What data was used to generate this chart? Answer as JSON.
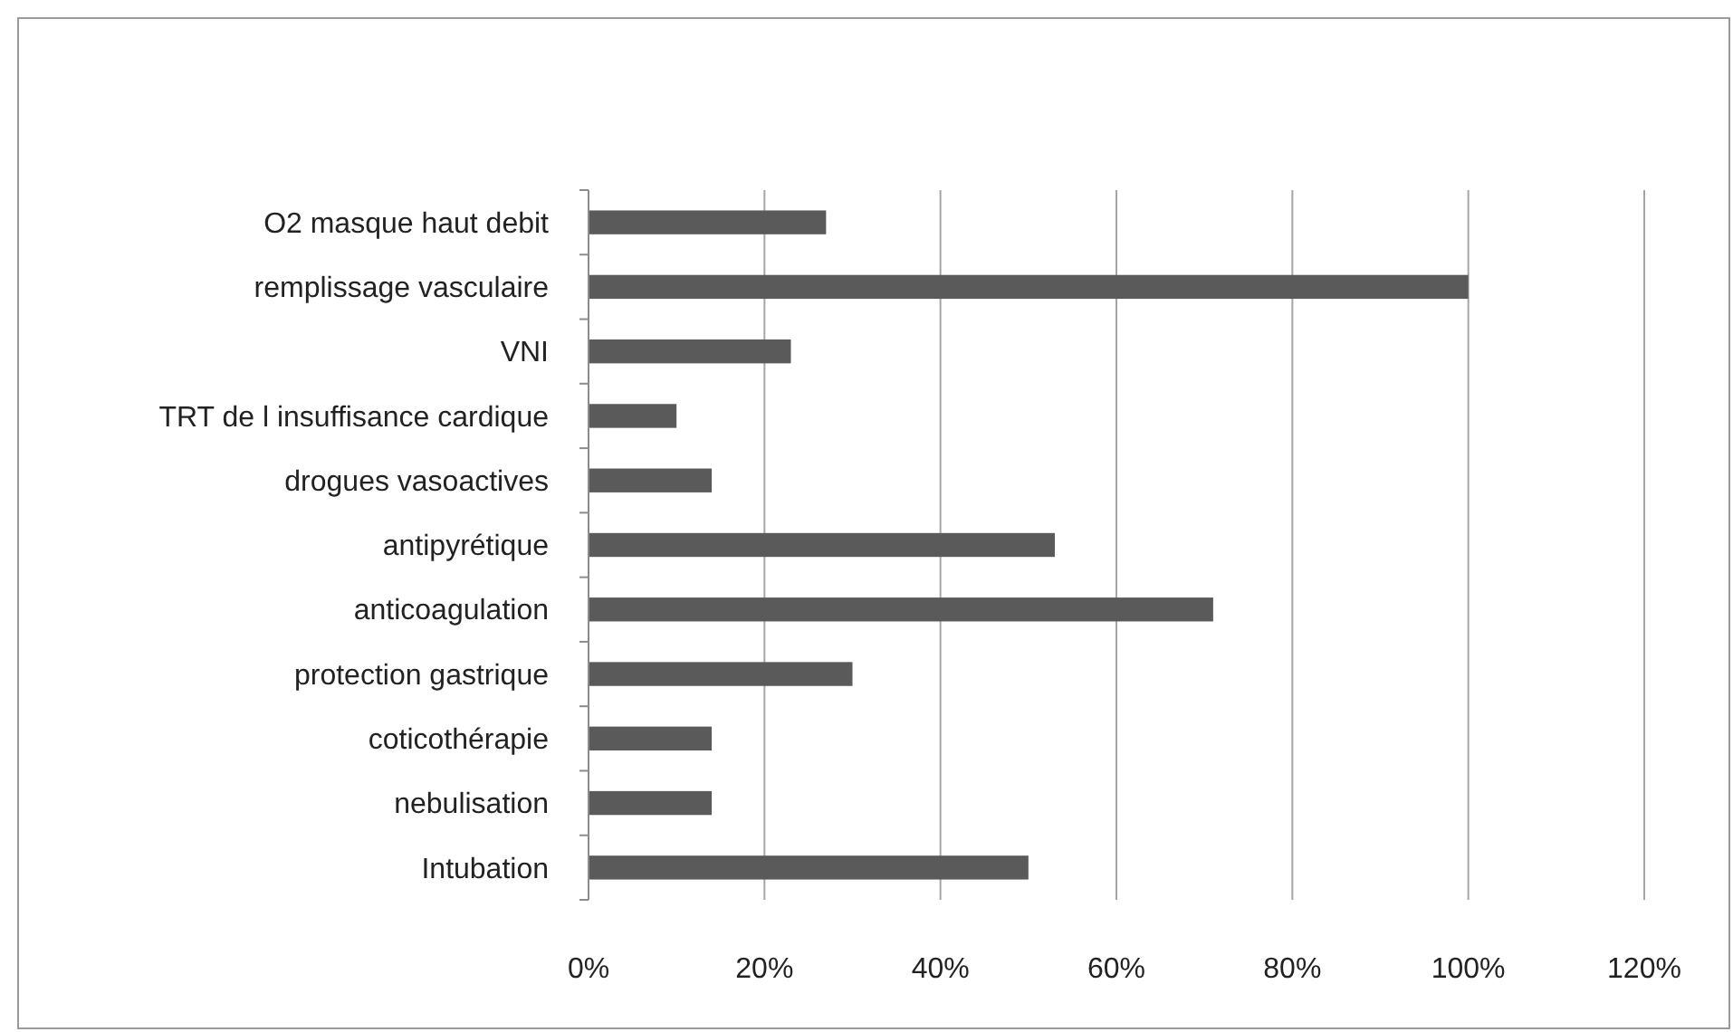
{
  "chart_data": {
    "type": "bar",
    "orientation": "horizontal",
    "categories": [
      "O2 masque haut debit",
      "remplissage vasculaire",
      "VNI",
      "TRT de l insuffisance cardique",
      "drogues vasoactives",
      "antipyrétique",
      "anticoagulation",
      "protection gastrique",
      "coticothérapie",
      "nebulisation",
      "Intubation"
    ],
    "values": [
      27,
      100,
      23,
      10,
      14,
      53,
      71,
      30,
      14,
      14,
      50
    ],
    "color": "#5a5a5a",
    "xlim": [
      0,
      120
    ],
    "xticks": [
      {
        "value": 0,
        "label": "0%"
      },
      {
        "value": 20,
        "label": "20%"
      },
      {
        "value": 40,
        "label": "40%"
      },
      {
        "value": 60,
        "label": "60%"
      },
      {
        "value": 80,
        "label": "80%"
      },
      {
        "value": 100,
        "label": "100%"
      },
      {
        "value": 120,
        "label": "120%"
      }
    ],
    "grid": "x"
  }
}
